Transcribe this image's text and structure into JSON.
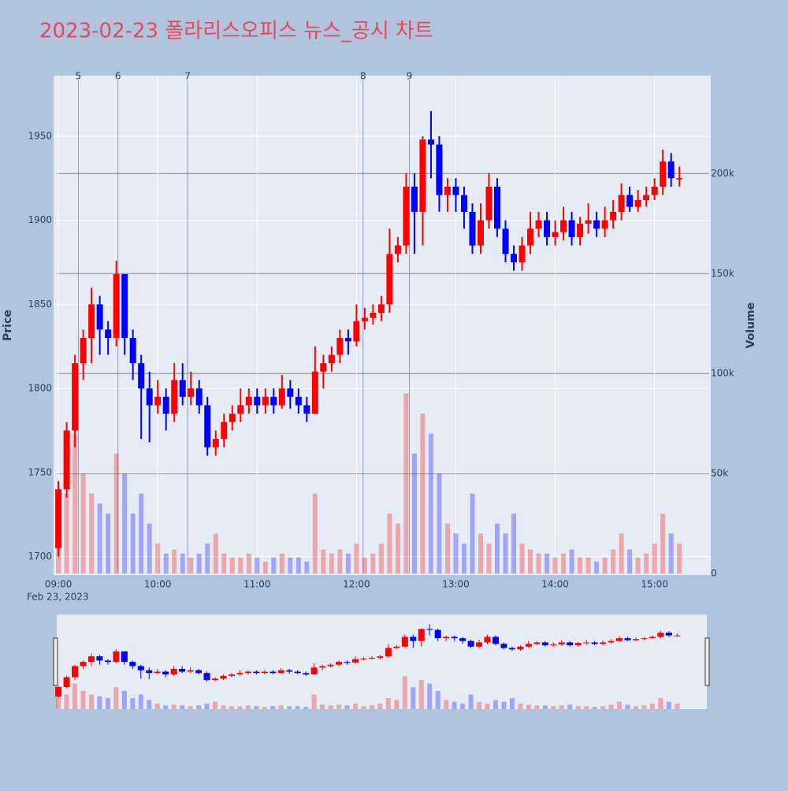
{
  "chart_data": {
    "type": "candlestick",
    "title": "2023-02-23 폴라리스오피스 뉴스_공시 차트",
    "y_axis_label": "Price",
    "y2_axis_label": "Volume",
    "x_axis_date_label": "Feb 23, 2023",
    "up_color": "#ff0000",
    "down_color": "#0000ff",
    "xlim": [
      "2023-02-23 08:59",
      "2023-02-23 15:33"
    ],
    "xticks": [
      {
        "value": "2023-02-23 09:00",
        "label": "09:00"
      },
      {
        "value": "2023-02-23 10:00",
        "label": "10:00"
      },
      {
        "value": "2023-02-23 11:00",
        "label": "11:00"
      },
      {
        "value": "2023-02-23 12:00",
        "label": "12:00"
      },
      {
        "value": "2023-02-23 13:00",
        "label": "13:00"
      },
      {
        "value": "2023-02-23 14:00",
        "label": "14:00"
      },
      {
        "value": "2023-02-23 15:00",
        "label": "15:00"
      }
    ],
    "ylim": [
      1689,
      1986
    ],
    "yticks": [
      1700,
      1750,
      1800,
      1850,
      1900,
      1950
    ],
    "y2lim": [
      0,
      249000
    ],
    "y2ticks": [
      0,
      {
        "value": 50000,
        "label": "50k"
      },
      {
        "value": 100000,
        "label": "100k"
      },
      {
        "value": 150000,
        "label": "150k"
      },
      {
        "value": 200000,
        "label": "200k"
      }
    ],
    "markers": [
      {
        "x": "2023-02-23 09:12",
        "label": "5"
      },
      {
        "x": "2023-02-23 09:36",
        "label": "6"
      },
      {
        "x": "2023-02-23 10:18",
        "label": "7"
      },
      {
        "x": "2023-02-23 12:04",
        "label": "8"
      },
      {
        "x": "2023-02-23 12:32",
        "label": "9"
      }
    ],
    "x": [
      "2023-02-23 09:00",
      "2023-02-23 09:05",
      "2023-02-23 09:10",
      "2023-02-23 09:15",
      "2023-02-23 09:20",
      "2023-02-23 09:25",
      "2023-02-23 09:30",
      "2023-02-23 09:35",
      "2023-02-23 09:40",
      "2023-02-23 09:45",
      "2023-02-23 09:50",
      "2023-02-23 09:55",
      "2023-02-23 10:00",
      "2023-02-23 10:05",
      "2023-02-23 10:10",
      "2023-02-23 10:15",
      "2023-02-23 10:20",
      "2023-02-23 10:25",
      "2023-02-23 10:30",
      "2023-02-23 10:35",
      "2023-02-23 10:40",
      "2023-02-23 10:45",
      "2023-02-23 10:50",
      "2023-02-23 10:55",
      "2023-02-23 11:00",
      "2023-02-23 11:05",
      "2023-02-23 11:10",
      "2023-02-23 11:15",
      "2023-02-23 11:20",
      "2023-02-23 11:25",
      "2023-02-23 11:30",
      "2023-02-23 11:35",
      "2023-02-23 11:40",
      "2023-02-23 11:45",
      "2023-02-23 11:50",
      "2023-02-23 11:55",
      "2023-02-23 12:00",
      "2023-02-23 12:05",
      "2023-02-23 12:10",
      "2023-02-23 12:15",
      "2023-02-23 12:20",
      "2023-02-23 12:25",
      "2023-02-23 12:30",
      "2023-02-23 12:35",
      "2023-02-23 12:40",
      "2023-02-23 12:45",
      "2023-02-23 12:50",
      "2023-02-23 12:55",
      "2023-02-23 13:00",
      "2023-02-23 13:05",
      "2023-02-23 13:10",
      "2023-02-23 13:15",
      "2023-02-23 13:20",
      "2023-02-23 13:25",
      "2023-02-23 13:30",
      "2023-02-23 13:35",
      "2023-02-23 13:40",
      "2023-02-23 13:45",
      "2023-02-23 13:50",
      "2023-02-23 13:55",
      "2023-02-23 14:00",
      "2023-02-23 14:05",
      "2023-02-23 14:10",
      "2023-02-23 14:15",
      "2023-02-23 14:20",
      "2023-02-23 14:25",
      "2023-02-23 14:30",
      "2023-02-23 14:35",
      "2023-02-23 14:40",
      "2023-02-23 14:45",
      "2023-02-23 14:50",
      "2023-02-23 14:55",
      "2023-02-23 15:00",
      "2023-02-23 15:05",
      "2023-02-23 15:10",
      "2023-02-23 15:15"
    ],
    "open": [
      1705,
      1740,
      1775,
      1815,
      1830,
      1850,
      1835,
      1830,
      1868,
      1830,
      1815,
      1800,
      1790,
      1795,
      1785,
      1805,
      1795,
      1800,
      1790,
      1765,
      1770,
      1780,
      1785,
      1790,
      1795,
      1790,
      1795,
      1790,
      1800,
      1795,
      1790,
      1785,
      1810,
      1815,
      1820,
      1830,
      1828,
      1840,
      1842,
      1845,
      1850,
      1880,
      1885,
      1920,
      1905,
      1948,
      1945,
      1915,
      1920,
      1915,
      1905,
      1885,
      1900,
      1920,
      1895,
      1880,
      1875,
      1885,
      1895,
      1900,
      1890,
      1893,
      1900,
      1890,
      1898,
      1900,
      1895,
      1900,
      1905,
      1915,
      1908,
      1912,
      1915,
      1920,
      1935,
      1925
    ],
    "high": [
      1745,
      1780,
      1820,
      1835,
      1860,
      1855,
      1840,
      1876,
      1868,
      1835,
      1820,
      1810,
      1805,
      1800,
      1815,
      1815,
      1810,
      1805,
      1795,
      1775,
      1785,
      1790,
      1800,
      1800,
      1800,
      1800,
      1800,
      1808,
      1805,
      1800,
      1795,
      1825,
      1820,
      1825,
      1835,
      1835,
      1850,
      1848,
      1850,
      1855,
      1895,
      1890,
      1928,
      1928,
      1950,
      1965,
      1950,
      1925,
      1925,
      1920,
      1910,
      1910,
      1928,
      1925,
      1900,
      1885,
      1890,
      1905,
      1905,
      1905,
      1900,
      1908,
      1905,
      1902,
      1910,
      1905,
      1908,
      1912,
      1922,
      1920,
      1918,
      1920,
      1925,
      1942,
      1940,
      1932
    ],
    "low": [
      1700,
      1735,
      1765,
      1805,
      1815,
      1820,
      1820,
      1825,
      1820,
      1805,
      1770,
      1768,
      1785,
      1775,
      1780,
      1790,
      1790,
      1785,
      1760,
      1760,
      1765,
      1775,
      1780,
      1785,
      1785,
      1785,
      1785,
      1788,
      1788,
      1785,
      1780,
      1785,
      1800,
      1810,
      1815,
      1820,
      1825,
      1835,
      1838,
      1840,
      1845,
      1875,
      1880,
      1880,
      1885,
      1925,
      1905,
      1905,
      1905,
      1895,
      1880,
      1880,
      1895,
      1890,
      1875,
      1870,
      1870,
      1880,
      1890,
      1885,
      1885,
      1888,
      1885,
      1885,
      1892,
      1890,
      1890,
      1895,
      1900,
      1905,
      1905,
      1908,
      1912,
      1915,
      1920,
      1920
    ],
    "close": [
      1740,
      1775,
      1815,
      1830,
      1850,
      1835,
      1830,
      1868,
      1830,
      1815,
      1800,
      1790,
      1795,
      1785,
      1805,
      1795,
      1800,
      1790,
      1765,
      1770,
      1780,
      1785,
      1790,
      1795,
      1790,
      1795,
      1790,
      1800,
      1795,
      1790,
      1785,
      1810,
      1815,
      1820,
      1830,
      1828,
      1840,
      1842,
      1845,
      1850,
      1880,
      1885,
      1920,
      1905,
      1948,
      1945,
      1915,
      1920,
      1915,
      1905,
      1885,
      1900,
      1920,
      1895,
      1880,
      1875,
      1885,
      1895,
      1900,
      1890,
      1893,
      1900,
      1890,
      1898,
      1900,
      1895,
      1900,
      1905,
      1915,
      1908,
      1912,
      1915,
      1920,
      1935,
      1925,
      1925
    ],
    "volume": [
      30000,
      40000,
      70000,
      50000,
      40000,
      35000,
      30000,
      60000,
      50000,
      30000,
      40000,
      25000,
      15000,
      10000,
      12000,
      10000,
      8000,
      10000,
      15000,
      20000,
      10000,
      8000,
      8000,
      10000,
      8000,
      6000,
      8000,
      10000,
      8000,
      8000,
      6000,
      40000,
      12000,
      10000,
      12000,
      10000,
      15000,
      8000,
      10000,
      15000,
      30000,
      25000,
      90000,
      60000,
      80000,
      70000,
      50000,
      25000,
      20000,
      15000,
      40000,
      20000,
      15000,
      25000,
      20000,
      30000,
      15000,
      12000,
      10000,
      10000,
      8000,
      10000,
      12000,
      8000,
      8000,
      6000,
      8000,
      12000,
      20000,
      12000,
      8000,
      10000,
      15000,
      30000,
      20000,
      15000
    ]
  }
}
